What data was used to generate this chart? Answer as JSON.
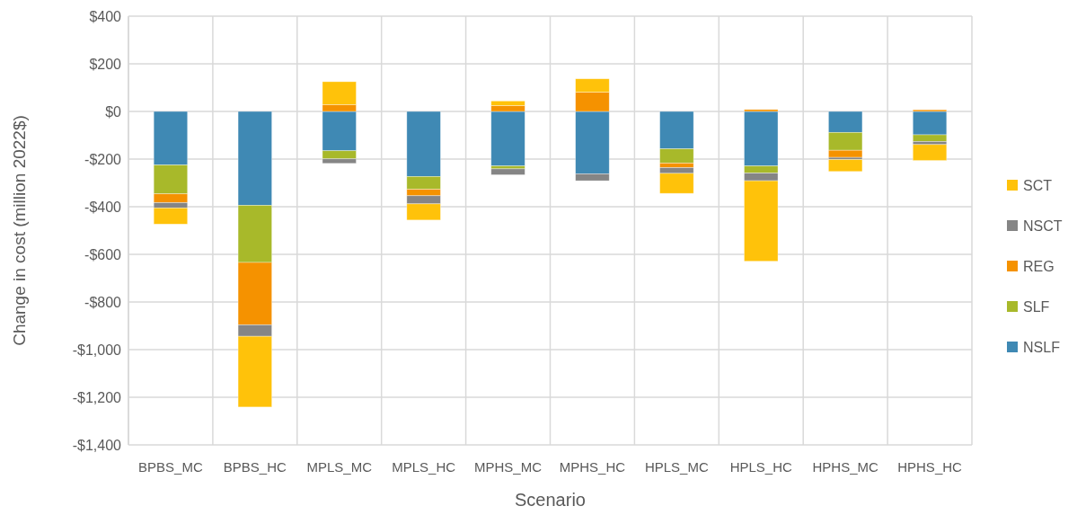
{
  "chart_data": {
    "type": "bar",
    "stacked": true,
    "xlabel": "Scenario",
    "ylabel": "Change in cost (million 2022$)",
    "categories": [
      "BPBS_MC",
      "BPBS_HC",
      "MPLS_MC",
      "MPLS_HC",
      "MPHS_MC",
      "MPHS_HC",
      "HPLS_MC",
      "HPLS_HC",
      "HPHS_MC",
      "HPHS_HC"
    ],
    "series": [
      {
        "name": "NSLF",
        "color": "#3f89b4",
        "values": [
          -225,
          -394,
          -165,
          -273,
          -229,
          -262,
          -157,
          -229,
          -88,
          -98
        ]
      },
      {
        "name": "SLF",
        "color": "#a8b92a",
        "values": [
          -121,
          -240,
          -34,
          -54,
          -12,
          null,
          -60,
          -30,
          -75,
          -28
        ]
      },
      {
        "name": "REG",
        "color": "#f59200",
        "values": [
          -37,
          -262,
          29,
          -27,
          25,
          81,
          -19,
          8,
          -30,
          7
        ]
      },
      {
        "name": "NSCT",
        "color": "#858585",
        "values": [
          -22,
          -48,
          -19,
          -34,
          -25,
          -29,
          -24,
          -32,
          -9,
          -13
        ]
      },
      {
        "name": "SCT",
        "color": "#ffc20a",
        "values": [
          -68,
          -297,
          96,
          -68,
          19,
          56,
          -84,
          -338,
          -50,
          -67
        ]
      }
    ],
    "ylim": [
      -1400,
      400
    ],
    "yticks": [
      {
        "value": -1400,
        "label": "-$1,400"
      },
      {
        "value": -1200,
        "label": "-$1,200"
      },
      {
        "value": -1000,
        "label": "-$1,000"
      },
      {
        "value": -800,
        "label": "-$800"
      },
      {
        "value": -600,
        "label": "-$600"
      },
      {
        "value": -400,
        "label": "-$400"
      },
      {
        "value": -200,
        "label": "-$200"
      },
      {
        "value": 0,
        "label": "$0"
      },
      {
        "value": 200,
        "label": "$200"
      },
      {
        "value": 400,
        "label": "$400"
      }
    ],
    "grid": true,
    "legend": "right"
  }
}
